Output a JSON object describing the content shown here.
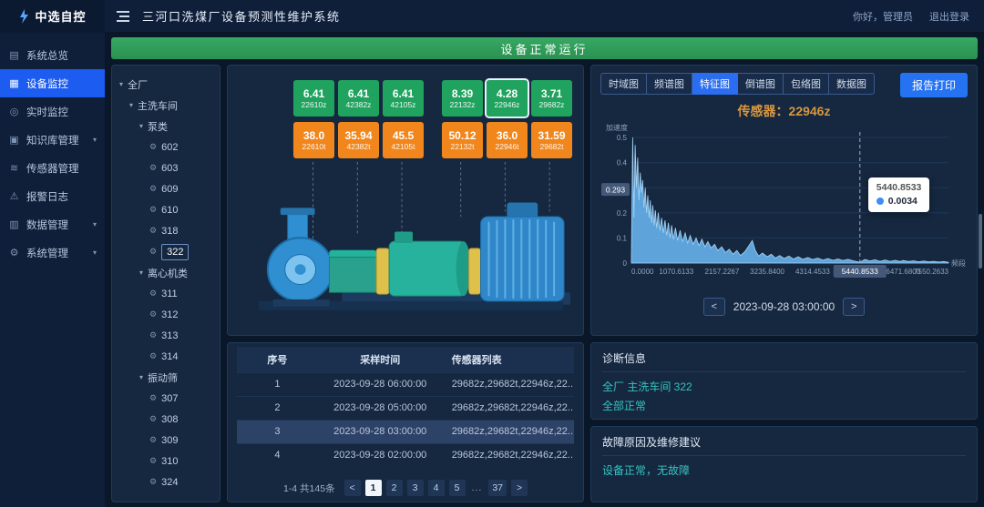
{
  "topbar": {
    "brand": "中选自控",
    "title": "三河口洗煤厂设备预测性维护系统",
    "greeting": "你好，管理员",
    "logout": "退出登录"
  },
  "status_banner": "设备正常运行",
  "sidebar": {
    "items": [
      {
        "label": "系统总览",
        "icon": "overview-icon",
        "glyph": "▤",
        "active": false,
        "chevron": false
      },
      {
        "label": "设备监控",
        "icon": "device-monitor-icon",
        "glyph": "▦",
        "active": true,
        "chevron": false
      },
      {
        "label": "实时监控",
        "icon": "realtime-monitor-icon",
        "glyph": "◎",
        "active": false,
        "chevron": false
      },
      {
        "label": "知识库管理",
        "icon": "knowledge-base-icon",
        "glyph": "▣",
        "active": false,
        "chevron": true
      },
      {
        "label": "传感器管理",
        "icon": "sensor-manage-icon",
        "glyph": "≋",
        "active": false,
        "chevron": false
      },
      {
        "label": "报警日志",
        "icon": "alarm-log-icon",
        "glyph": "⚠",
        "active": false,
        "chevron": false
      },
      {
        "label": "数据管理",
        "icon": "data-manage-icon",
        "glyph": "▥",
        "active": false,
        "chevron": true
      },
      {
        "label": "系统管理",
        "icon": "system-manage-icon",
        "glyph": "⚙",
        "active": false,
        "chevron": true
      }
    ]
  },
  "tree": {
    "items": [
      {
        "label": "全厂",
        "level": 0,
        "kind": "branch"
      },
      {
        "label": "主洗车间",
        "level": 1,
        "kind": "branch"
      },
      {
        "label": "泵类",
        "level": 2,
        "kind": "branch"
      },
      {
        "label": "602",
        "level": 3,
        "kind": "leaf"
      },
      {
        "label": "603",
        "level": 3,
        "kind": "leaf"
      },
      {
        "label": "609",
        "level": 3,
        "kind": "leaf"
      },
      {
        "label": "610",
        "level": 3,
        "kind": "leaf"
      },
      {
        "label": "318",
        "level": 3,
        "kind": "leaf"
      },
      {
        "label": "322",
        "level": 3,
        "kind": "leaf",
        "selected": true
      },
      {
        "label": "离心机类",
        "level": 2,
        "kind": "branch"
      },
      {
        "label": "311",
        "level": 3,
        "kind": "leaf"
      },
      {
        "label": "312",
        "level": 3,
        "kind": "leaf"
      },
      {
        "label": "313",
        "level": 3,
        "kind": "leaf"
      },
      {
        "label": "314",
        "level": 3,
        "kind": "leaf"
      },
      {
        "label": "振动筛",
        "level": 2,
        "kind": "branch"
      },
      {
        "label": "307",
        "level": 3,
        "kind": "leaf"
      },
      {
        "label": "308",
        "level": 3,
        "kind": "leaf"
      },
      {
        "label": "309",
        "level": 3,
        "kind": "leaf"
      },
      {
        "label": "310",
        "level": 3,
        "kind": "leaf"
      },
      {
        "label": "324",
        "level": 3,
        "kind": "leaf"
      }
    ]
  },
  "device_panel": {
    "vibration_sensors": [
      {
        "value": "6.41",
        "id": "22610z"
      },
      {
        "value": "6.41",
        "id": "42382z"
      },
      {
        "value": "6.41",
        "id": "42105z"
      },
      {
        "value": "8.39",
        "id": "22132z"
      },
      {
        "value": "4.28",
        "id": "22946z",
        "selected": true
      },
      {
        "value": "3.71",
        "id": "29682z"
      }
    ],
    "temperature_sensors": [
      {
        "value": "38.0",
        "id": "22610t"
      },
      {
        "value": "35.94",
        "id": "42382t"
      },
      {
        "value": "45.5",
        "id": "42105t"
      },
      {
        "value": "50.12",
        "id": "22132t"
      },
      {
        "value": "36.0",
        "id": "22946t"
      },
      {
        "value": "31.59",
        "id": "29682t"
      }
    ]
  },
  "sample_table": {
    "headers": [
      "序号",
      "采样时间",
      "传感器列表"
    ],
    "rows": [
      {
        "no": "1",
        "time": "2023-09-28 06:00:00",
        "sensors": "29682z,29682t,22946z,22..."
      },
      {
        "no": "2",
        "time": "2023-09-28 05:00:00",
        "sensors": "29682z,29682t,22946z,22..."
      },
      {
        "no": "3",
        "time": "2023-09-28 03:00:00",
        "sensors": "29682z,29682t,22946z,22...",
        "selected": true
      },
      {
        "no": "4",
        "time": "2023-09-28 02:00:00",
        "sensors": "29682z,29682t,22946z,22..."
      }
    ],
    "pagination": {
      "summary": "1-4 共145条",
      "prev": "<",
      "pages": [
        "1",
        "2",
        "3",
        "4",
        "5"
      ],
      "ellipsis": "...",
      "last": "37",
      "next": ">",
      "active": "1"
    }
  },
  "chart_panel": {
    "tabs": [
      "时域图",
      "频谱图",
      "特征图",
      "倒谱图",
      "包络图",
      "数据图"
    ],
    "active_tab": "特征图",
    "print_button": "报告打印",
    "datetime": "2023-09-28 03:00:00",
    "prev": "<",
    "next": ">"
  },
  "chart_data": {
    "type": "area",
    "title": "传感器：22946z",
    "xlabel": "频段",
    "ylabel": "加速度",
    "xlim": [
      0,
      7550.2633
    ],
    "ylim": [
      0,
      0.5
    ],
    "x_ticks": [
      "0.0000",
      "1070.6133",
      "2157.2267",
      "3235.8400",
      "4314.4533",
      "6471.6800",
      "7550.2633"
    ],
    "y_ticks": [
      0,
      0.1,
      0.2,
      0.3,
      0.4,
      0.5
    ],
    "legend_position": "none",
    "grid": true,
    "hover": {
      "x": 5440.8533,
      "x_label": "5440.8533",
      "value": 0.0034,
      "value_label": "0.0034",
      "y_pointer": 0.293,
      "y_pointer_label": "0.293"
    },
    "points": [
      [
        0,
        0.03
      ],
      [
        30,
        0.5
      ],
      [
        60,
        0.18
      ],
      [
        90,
        0.47
      ],
      [
        120,
        0.3
      ],
      [
        150,
        0.42
      ],
      [
        180,
        0.25
      ],
      [
        210,
        0.36
      ],
      [
        240,
        0.28
      ],
      [
        270,
        0.33
      ],
      [
        300,
        0.22
      ],
      [
        330,
        0.3
      ],
      [
        360,
        0.2
      ],
      [
        390,
        0.27
      ],
      [
        420,
        0.18
      ],
      [
        450,
        0.25
      ],
      [
        480,
        0.16
      ],
      [
        510,
        0.23
      ],
      [
        540,
        0.15
      ],
      [
        570,
        0.21
      ],
      [
        600,
        0.14
      ],
      [
        640,
        0.2
      ],
      [
        680,
        0.13
      ],
      [
        720,
        0.18
      ],
      [
        760,
        0.12
      ],
      [
        800,
        0.17
      ],
      [
        840,
        0.11
      ],
      [
        880,
        0.16
      ],
      [
        920,
        0.1
      ],
      [
        960,
        0.15
      ],
      [
        1000,
        0.095
      ],
      [
        1050,
        0.14
      ],
      [
        1100,
        0.09
      ],
      [
        1160,
        0.13
      ],
      [
        1220,
        0.085
      ],
      [
        1280,
        0.12
      ],
      [
        1340,
        0.08
      ],
      [
        1400,
        0.11
      ],
      [
        1470,
        0.075
      ],
      [
        1540,
        0.1
      ],
      [
        1610,
        0.07
      ],
      [
        1680,
        0.095
      ],
      [
        1750,
        0.065
      ],
      [
        1820,
        0.085
      ],
      [
        1900,
        0.06
      ],
      [
        1980,
        0.075
      ],
      [
        2060,
        0.05
      ],
      [
        2150,
        0.065
      ],
      [
        2240,
        0.042
      ],
      [
        2330,
        0.055
      ],
      [
        2420,
        0.035
      ],
      [
        2510,
        0.05
      ],
      [
        2600,
        0.03
      ],
      [
        2700,
        0.045
      ],
      [
        2800,
        0.07
      ],
      [
        2880,
        0.09
      ],
      [
        2950,
        0.05
      ],
      [
        3030,
        0.028
      ],
      [
        3120,
        0.04
      ],
      [
        3235,
        0.025
      ],
      [
        3330,
        0.035
      ],
      [
        3430,
        0.02
      ],
      [
        3530,
        0.03
      ],
      [
        3640,
        0.018
      ],
      [
        3750,
        0.028
      ],
      [
        3860,
        0.016
      ],
      [
        3970,
        0.025
      ],
      [
        4080,
        0.015
      ],
      [
        4200,
        0.022
      ],
      [
        4314,
        0.014
      ],
      [
        4440,
        0.02
      ],
      [
        4560,
        0.012
      ],
      [
        4680,
        0.018
      ],
      [
        4800,
        0.011
      ],
      [
        4920,
        0.016
      ],
      [
        5040,
        0.01
      ],
      [
        5160,
        0.015
      ],
      [
        5280,
        0.009
      ],
      [
        5440,
        0.0034
      ],
      [
        5560,
        0.014
      ],
      [
        5680,
        0.008
      ],
      [
        5800,
        0.013
      ],
      [
        5920,
        0.007
      ],
      [
        6040,
        0.012
      ],
      [
        6160,
        0.007
      ],
      [
        6280,
        0.011
      ],
      [
        6400,
        0.006
      ],
      [
        6471,
        0.01
      ],
      [
        6600,
        0.006
      ],
      [
        6720,
        0.009
      ],
      [
        6840,
        0.005
      ],
      [
        6960,
        0.008
      ],
      [
        7080,
        0.005
      ],
      [
        7200,
        0.007
      ],
      [
        7320,
        0.004
      ],
      [
        7440,
        0.006
      ],
      [
        7550,
        0.003
      ]
    ]
  },
  "diagnosis": {
    "title": "诊断信息",
    "location": "全厂 主洗车间 322",
    "status": "全部正常"
  },
  "fault": {
    "title": "故障原因及维修建议",
    "message": "设备正常，无故障"
  },
  "colors": {
    "accent_blue": "#2a6df0",
    "banner_green": "#2f9e5c",
    "badge_green": "#1fa35f",
    "badge_orange": "#f0861c",
    "teal_text": "#35c3bf",
    "title_orange": "#d8973f",
    "chart_fill": "#64aee6"
  }
}
